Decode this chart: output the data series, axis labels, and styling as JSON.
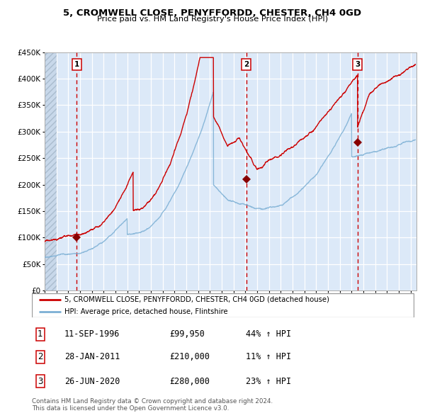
{
  "title": "5, CROMWELL CLOSE, PENYFFORDD, CHESTER, CH4 0GD",
  "subtitle": "Price paid vs. HM Land Registry's House Price Index (HPI)",
  "ylim": [
    0,
    450000
  ],
  "yticks": [
    0,
    50000,
    100000,
    150000,
    200000,
    250000,
    300000,
    350000,
    400000,
    450000
  ],
  "xmin": 1994.0,
  "xmax": 2025.5,
  "plot_bg_color": "#dce9f8",
  "grid_color": "#ffffff",
  "red_line_color": "#cc0000",
  "blue_line_color": "#7bafd4",
  "sale_marker_color": "#880000",
  "vline_color_dashed": "#cc0000",
  "sale_points": [
    {
      "year": 1996.71,
      "price": 99950
    },
    {
      "year": 2011.08,
      "price": 210000
    },
    {
      "year": 2020.49,
      "price": 280000
    }
  ],
  "vlines_dashed": [
    1996.71,
    2011.08,
    2020.49
  ],
  "annotations": [
    {
      "label": "1",
      "x": 1996.71
    },
    {
      "label": "2",
      "x": 2011.08
    },
    {
      "label": "3",
      "x": 2020.49
    }
  ],
  "legend_entries": [
    {
      "color": "#cc0000",
      "text": "5, CROMWELL CLOSE, PENYFFORDD, CHESTER, CH4 0GD (detached house)"
    },
    {
      "color": "#7bafd4",
      "text": "HPI: Average price, detached house, Flintshire"
    }
  ],
  "table_rows": [
    {
      "num": "1",
      "date": "11-SEP-1996",
      "price": "£99,950",
      "change": "44% ↑ HPI"
    },
    {
      "num": "2",
      "date": "28-JAN-2011",
      "price": "£210,000",
      "change": "11% ↑ HPI"
    },
    {
      "num": "3",
      "date": "26-JUN-2020",
      "price": "£280,000",
      "change": "23% ↑ HPI"
    }
  ],
  "footer_text": "Contains HM Land Registry data © Crown copyright and database right 2024.\nThis data is licensed under the Open Government Licence v3.0."
}
